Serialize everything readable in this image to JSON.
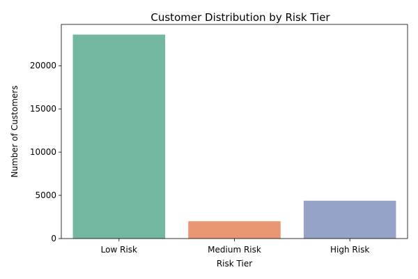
{
  "chart_data": {
    "type": "bar",
    "title": "Customer Distribution by Risk Tier",
    "xlabel": "Risk Tier",
    "ylabel": "Number of Customers",
    "categories": [
      "Low Risk",
      "Medium Risk",
      "High Risk"
    ],
    "values": [
      23600,
      2000,
      4380
    ],
    "colors": [
      "#73b7a1",
      "#e99675",
      "#95a4c6"
    ],
    "ylim": [
      0,
      24780
    ],
    "yticks": [
      0,
      5000,
      10000,
      15000,
      20000
    ],
    "grid": false,
    "legend": "none"
  }
}
